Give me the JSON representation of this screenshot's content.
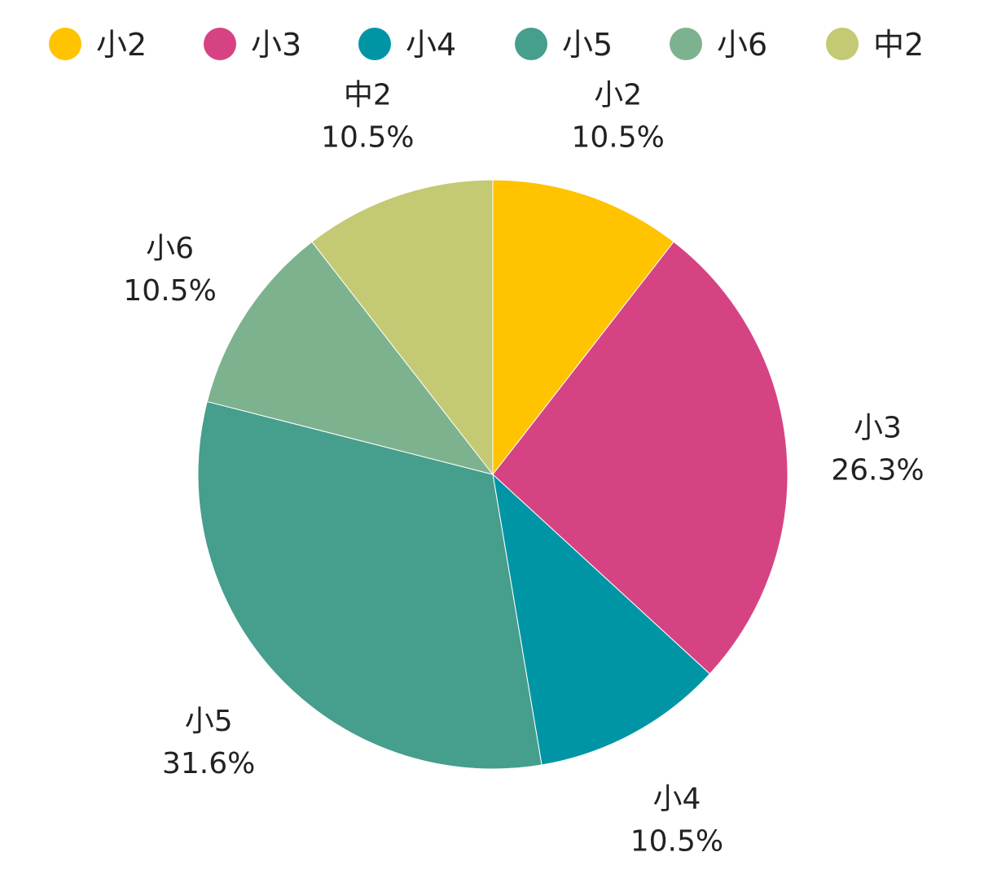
{
  "chart_data": {
    "type": "pie",
    "title": "",
    "legend_position": "top",
    "categories": [
      "小2",
      "小3",
      "小4",
      "小5",
      "小6",
      "中2"
    ],
    "values": [
      10.5,
      26.3,
      10.5,
      31.6,
      10.5,
      10.5
    ],
    "value_labels": [
      "10.5%",
      "26.3%",
      "10.5%",
      "31.6%",
      "10.5%",
      "10.5%"
    ],
    "colors": [
      "#ffc300",
      "#d64382",
      "#0095a5",
      "#469e8c",
      "#7db28f",
      "#c4c973"
    ],
    "start_angle": "12 o'clock",
    "direction": "clockwise"
  }
}
